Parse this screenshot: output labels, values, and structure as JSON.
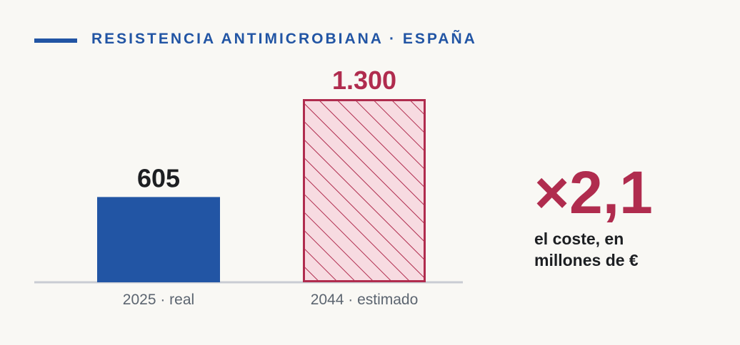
{
  "header": {
    "kicker": "RESISTENCIA ANTIMICROBIANA · ESPAÑA",
    "accent_color": "#2255a4"
  },
  "chart_data": {
    "type": "bar",
    "categories": [
      "2025 · real",
      "2044 · estimado"
    ],
    "values": [
      605,
      1300
    ],
    "value_labels": [
      "605",
      "1.300"
    ],
    "bar_styles": [
      "solid",
      "hatched"
    ],
    "colors": [
      "#2255a4",
      "#b02c4e"
    ],
    "ylim": [
      0,
      1300
    ]
  },
  "callout": {
    "ratio": "×2,1",
    "caption": "el coste, en millones de €",
    "color": "#b02c4e"
  }
}
